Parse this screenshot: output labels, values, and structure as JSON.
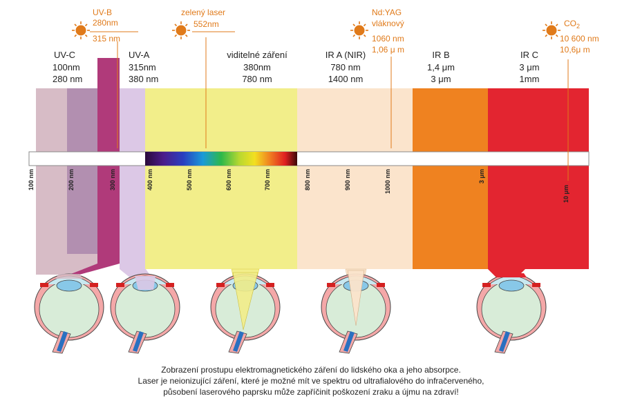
{
  "bands": [
    {
      "name": "UV-C",
      "range1": "100nm",
      "range2": "280 nm"
    },
    {
      "name": "UV-A",
      "range1": "315nm",
      "range2": "380 nm"
    },
    {
      "name": "viditelné záření",
      "range1": "380nm",
      "range2": "780 nm"
    },
    {
      "name": "IR A (NIR)",
      "range1": "780 nm",
      "range2": "1400 nm"
    },
    {
      "name": "IR B",
      "range1": "1,4 μm",
      "range2": "3 μm"
    },
    {
      "name": "IR C",
      "range1": "3 μm",
      "range2": "1mm"
    }
  ],
  "lasers": [
    {
      "name": "UV-B",
      "line1": "280nm",
      "line2": "315 nm"
    },
    {
      "name": "zelený laser",
      "line1": "552nm"
    },
    {
      "name": "Nd:YAG",
      "line1": "vláknový",
      "line2": "1060 nm",
      "line3": "1,06 μ m"
    },
    {
      "name": "CO",
      "sub": "2",
      "line1": "10 600 nm",
      "line2": "10,6μ m"
    }
  ],
  "ticks": [
    "100 nm",
    "200 nm",
    "300 nm",
    "400 nm",
    "500 nm",
    "600 nm",
    "700 nm",
    "800 nm",
    "900 nm",
    "1000 nm",
    "3 μm",
    "10 μm"
  ],
  "caption": [
    "Zobrazení prostupu elektromagnetického záření do lidského oka a jeho absorpce.",
    "Laser je neionizující záření, které je možné mít ve spektru od ultrafialového do infračerveného,",
    "působení laserového paprsku může zapříčinit poškození zraku a újmu na zdraví!"
  ],
  "colors": {
    "uvc": "#d7bcc6",
    "uvc2": "#b28fb0",
    "uvb": "#b03a7a",
    "uva": "#dcc8e6",
    "visible": "#f2ee8a",
    "ira": "#fbe4cc",
    "irb": "#ef8220",
    "irc": "#e32530",
    "laser_label": "#e07a1a"
  }
}
